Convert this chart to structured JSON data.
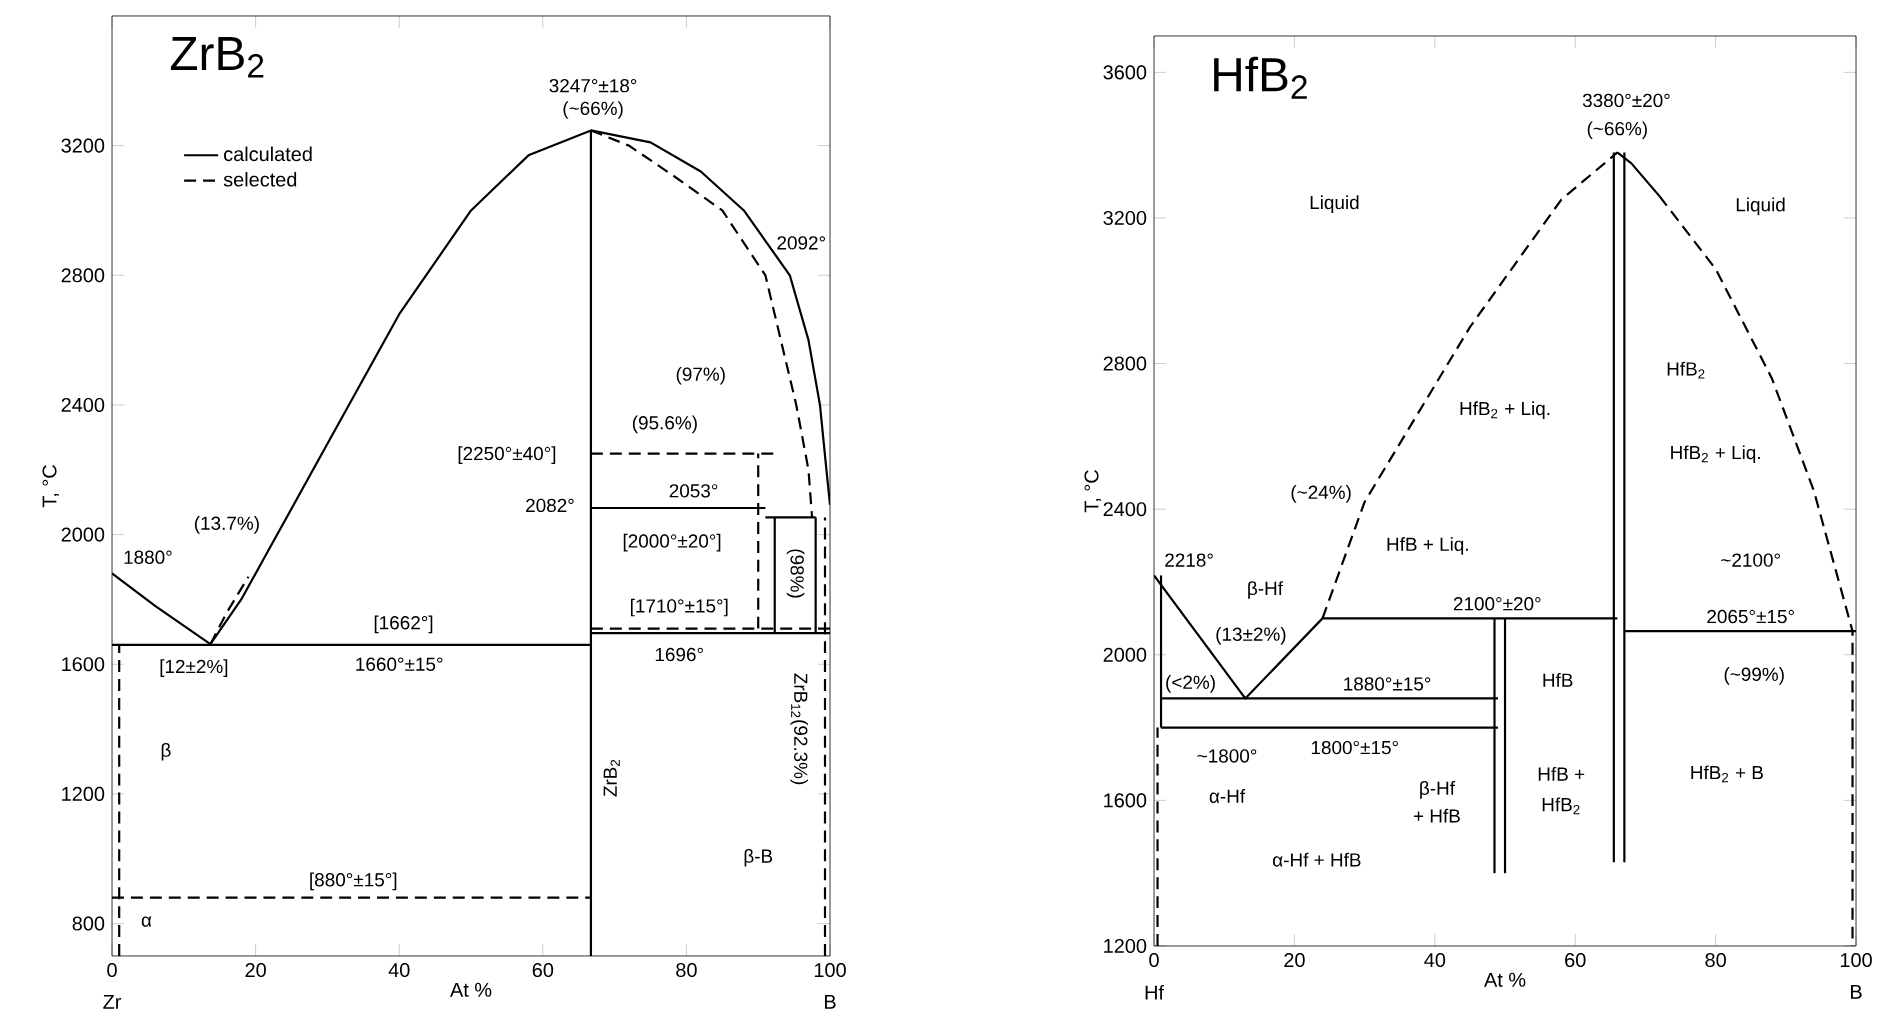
{
  "chart_data": [
    {
      "type": "line",
      "title": "ZrB$_{2}$",
      "xlabel": "At %",
      "ylabel": "T, °C",
      "xlim": [
        0,
        100
      ],
      "ylim": [
        700,
        3600
      ],
      "xticks": [
        0,
        20,
        40,
        60,
        80,
        100
      ],
      "yticks": [
        800,
        1200,
        1600,
        2000,
        2400,
        2800,
        3200
      ],
      "marker": "none",
      "legend": "top left",
      "series": [
        {
          "name": "calculated",
          "color": "#000000",
          "line_style": "solid",
          "x": [
            0,
            6,
            13.7,
            18,
            22,
            30,
            40,
            50,
            58,
            66.7
          ],
          "values": [
            1880,
            1780,
            1662,
            1800,
            1960,
            2280,
            2680,
            3000,
            3170,
            3247
          ]
        },
        {
          "name": "selected",
          "color": "#000000",
          "line_style": "dashed",
          "x": [
            66.7,
            72,
            78,
            85,
            91,
            95.3,
            97,
            97.5
          ],
          "values": [
            3247,
            3200,
            3110,
            3000,
            2800,
            2400,
            2200,
            2053
          ]
        },
        {
          "color": "#000000",
          "line_style": "solid",
          "x": [
            66.7,
            75,
            82,
            88,
            94.4,
            97,
            98.6,
            99.5,
            100
          ],
          "values": [
            3247,
            3210,
            3120,
            3000,
            2800,
            2600,
            2400,
            2200,
            2092
          ]
        },
        {
          "color": "#000000",
          "line_style": "solid",
          "x": [
            66.7,
            66.7
          ],
          "values": [
            700,
            3247
          ]
        },
        {
          "color": "#000000",
          "line_style": "solid",
          "x": [
            0,
            66.7
          ],
          "values": [
            1660,
            1660
          ]
        },
        {
          "color": "#000000",
          "line_style": "dashed",
          "x": [
            0,
            66.7
          ],
          "values": [
            880,
            880
          ]
        },
        {
          "color": "#000000",
          "line_style": "dashed",
          "x": [
            1,
            1
          ],
          "values": [
            700,
            1662
          ]
        },
        {
          "color": "#000000",
          "line_style": "dashed",
          "x": [
            13.7,
            16,
            19
          ],
          "values": [
            1662,
            1760,
            1870
          ]
        },
        {
          "color": "#000000",
          "line_style": "solid",
          "x": [
            66.7,
            91
          ],
          "values": [
            2082,
            2082
          ]
        },
        {
          "color": "#000000",
          "line_style": "dashed",
          "x": [
            66.7,
            92.3
          ],
          "values": [
            2250,
            2250
          ]
        },
        {
          "color": "#000000",
          "line_style": "solid",
          "x": [
            66.7,
            100
          ],
          "values": [
            1696,
            1696
          ]
        },
        {
          "color": "#000000",
          "line_style": "dashed",
          "x": [
            66.7,
            100
          ],
          "values": [
            1710,
            1710
          ]
        },
        {
          "color": "#000000",
          "line_style": "dashed",
          "x": [
            90,
            90
          ],
          "values": [
            1710,
            2250
          ]
        },
        {
          "color": "#000000",
          "line_style": "solid",
          "x": [
            92.3,
            92.3
          ],
          "values": [
            1696,
            2053
          ]
        },
        {
          "color": "#000000",
          "line_style": "solid",
          "x": [
            98,
            98
          ],
          "values": [
            1696,
            2053
          ]
        },
        {
          "color": "#000000",
          "line_style": "dashed",
          "x": [
            99.3,
            99.3
          ],
          "values": [
            700,
            2053
          ]
        },
        {
          "color": "#000000",
          "line_style": "solid",
          "x": [
            91,
            98
          ],
          "values": [
            2053,
            2053
          ]
        }
      ],
      "annotations": [
        "3247°±18°",
        "(~66%)",
        "2092°",
        "(97%)",
        "(95.6%)",
        "[2250°±40°]",
        "2053°",
        "2082°",
        "[2000°±20°]",
        "(98%)",
        "[1710°±15°]",
        "1696°",
        "ZrB$_{12}$(92.3%)",
        "ZrB$_{2}$",
        "β-B",
        "[880°±15°]",
        "α",
        "β",
        "[1662°]",
        "1660°±15°",
        "[12±2%]",
        "1880°",
        "(13.7%)",
        "Zr",
        "B"
      ]
    },
    {
      "type": "line",
      "title": "HfB$_{2}$",
      "xlabel": "At %",
      "ylabel": "T, °C",
      "xlim": [
        0,
        100
      ],
      "ylim": [
        1200,
        3700
      ],
      "xticks": [
        0,
        20,
        40,
        60,
        80,
        100
      ],
      "yticks": [
        1200,
        1600,
        2000,
        2400,
        2800,
        3200,
        3600
      ],
      "marker": "none",
      "series": [
        {
          "color": "#000000",
          "line_style": "dashed",
          "x": [
            24,
            30,
            45,
            58,
            66
          ],
          "values": [
            2100,
            2420,
            2900,
            3250,
            3380
          ]
        },
        {
          "color": "#000000",
          "line_style": "solid",
          "x": [
            66,
            68,
            72
          ],
          "values": [
            3380,
            3350,
            3260
          ]
        },
        {
          "color": "#000000",
          "line_style": "dashed",
          "x": [
            72,
            80,
            88,
            94,
            99.5,
            99.5
          ],
          "values": [
            3260,
            3060,
            2760,
            2450,
            2065,
            1200
          ]
        },
        {
          "color": "#000000",
          "line_style": "solid",
          "x": [
            0,
            13,
            24
          ],
          "values": [
            2218,
            1880,
            2100
          ]
        },
        {
          "color": "#000000",
          "line_style": "solid",
          "x": [
            24,
            66
          ],
          "values": [
            2100,
            2100
          ]
        },
        {
          "color": "#000000",
          "line_style": "solid",
          "x": [
            67,
            100
          ],
          "values": [
            2065,
            2065
          ]
        },
        {
          "color": "#000000",
          "line_style": "solid",
          "x": [
            1,
            49
          ],
          "values": [
            1880,
            1880
          ]
        },
        {
          "color": "#000000",
          "line_style": "solid",
          "x": [
            1,
            49
          ],
          "values": [
            1800,
            1800
          ]
        },
        {
          "color": "#000000",
          "line_style": "solid",
          "x": [
            48.5,
            48.5
          ],
          "values": [
            1400,
            2100
          ]
        },
        {
          "color": "#000000",
          "line_style": "solid",
          "x": [
            50,
            50
          ],
          "values": [
            1400,
            2100
          ]
        },
        {
          "color": "#000000",
          "line_style": "solid",
          "x": [
            65.5,
            65.5
          ],
          "values": [
            1430,
            3380
          ]
        },
        {
          "color": "#000000",
          "line_style": "solid",
          "x": [
            67,
            67
          ],
          "values": [
            1430,
            3380
          ]
        },
        {
          "color": "#000000",
          "line_style": "solid",
          "x": [
            1,
            1
          ],
          "values": [
            1800,
            2218
          ]
        },
        {
          "color": "#000000",
          "line_style": "dashed",
          "x": [
            0.5,
            0.5
          ],
          "values": [
            1200,
            1800
          ]
        }
      ],
      "annotations": [
        "3380°±20°",
        "(~66%)",
        "Liquid",
        "Liquid",
        "HfB$_{2}$",
        "HfB$_{2}$ + Liq.",
        "HfB$_{2}$ + Liq.",
        "(~24%)",
        "2218°",
        "β-Hf",
        "HfB + Liq.",
        "2100°±20°",
        "~2100°",
        "2065°±15°",
        "(13±2%)",
        "(<2%)",
        "1880°±15°",
        "HfB",
        "(~99%)",
        "~1800°",
        "1800°±15°",
        "α-Hf",
        "β-Hf",
        "+ HfB",
        "HfB +",
        "HfB$_{2}$",
        "HfB$_{2}$ + B",
        "α-Hf + HfB",
        "Hf",
        "B"
      ]
    }
  ]
}
